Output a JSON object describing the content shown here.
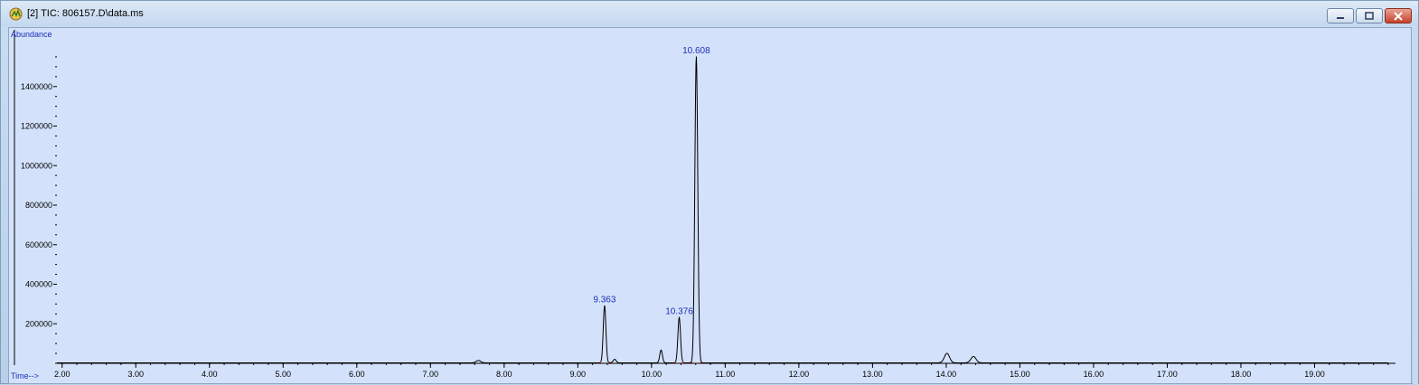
{
  "window": {
    "title": "[2] TIC: 806157.D\\data.ms",
    "buttons": {
      "minimize": "minimize",
      "maximize": "maximize",
      "close": "close"
    }
  },
  "chart_data": {
    "type": "line",
    "ylabel": "Abundance",
    "xlabel": "Time-->",
    "xlim": [
      1.93,
      20.0
    ],
    "ylim": [
      0,
      1600000
    ],
    "x_ticks": [
      "2.00",
      "3.00",
      "4.00",
      "5.00",
      "6.00",
      "7.00",
      "8.00",
      "9.00",
      "10.00",
      "11.00",
      "12.00",
      "13.00",
      "14.00",
      "15.00",
      "16.00",
      "17.00",
      "18.00",
      "19.00"
    ],
    "y_ticks": [
      "200000",
      "400000",
      "600000",
      "800000",
      "1000000",
      "1200000",
      "1400000"
    ],
    "peaks": [
      {
        "rt": 7.65,
        "height": 12000,
        "width": 0.03,
        "label": ""
      },
      {
        "rt": 9.363,
        "height": 290000,
        "width": 0.018,
        "label": "9.363"
      },
      {
        "rt": 9.5,
        "height": 18000,
        "width": 0.02,
        "label": ""
      },
      {
        "rt": 10.13,
        "height": 65000,
        "width": 0.018,
        "label": ""
      },
      {
        "rt": 10.376,
        "height": 230000,
        "width": 0.018,
        "label": "10.376"
      },
      {
        "rt": 10.608,
        "height": 1550000,
        "width": 0.02,
        "label": "10.608"
      },
      {
        "rt": 14.01,
        "height": 48000,
        "width": 0.035,
        "label": ""
      },
      {
        "rt": 14.37,
        "height": 32000,
        "width": 0.035,
        "label": ""
      }
    ],
    "grid": false,
    "colors": {
      "trace": "#000000",
      "labels": "#1f2fb8",
      "axis": "#000000",
      "markers": "#cc2222"
    }
  }
}
